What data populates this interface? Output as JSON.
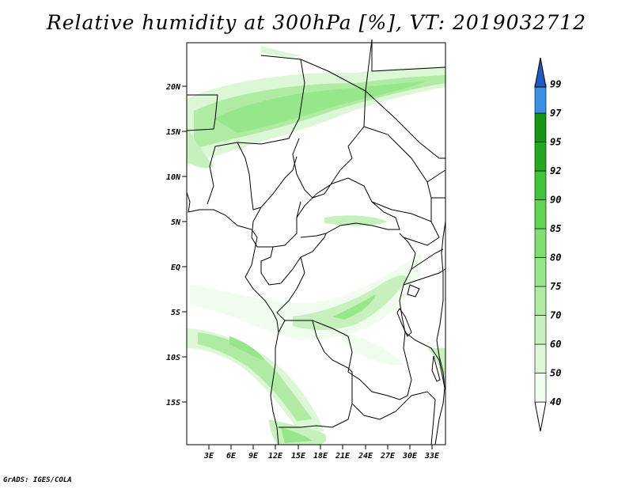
{
  "title": "Relative humidity at 300hPa [%], VT: 2019032712",
  "credit": "GrADS: IGES/COLA",
  "map": {
    "lat_ticks": [
      "20N",
      "15N",
      "10N",
      "5N",
      "EQ",
      "5S",
      "10S",
      "15S"
    ],
    "lon_ticks": [
      "3E",
      "6E",
      "9E",
      "12E",
      "15E",
      "18E",
      "21E",
      "24E",
      "27E",
      "30E",
      "33E"
    ],
    "field": "Relative humidity",
    "level": "300hPa",
    "unit": "%"
  },
  "colorbar": {
    "levels": [
      "40",
      "50",
      "60",
      "70",
      "75",
      "80",
      "85",
      "90",
      "92",
      "95",
      "97",
      "99"
    ],
    "colors": [
      "#f0fcee",
      "#dcf7d6",
      "#c7f1bc",
      "#b0eba3",
      "#96e68a",
      "#7ede70",
      "#5ed553",
      "#3fc43a",
      "#24a824",
      "#139413",
      "#3a8fe6",
      "#1e6fdc",
      "#1d5bc4"
    ]
  }
}
